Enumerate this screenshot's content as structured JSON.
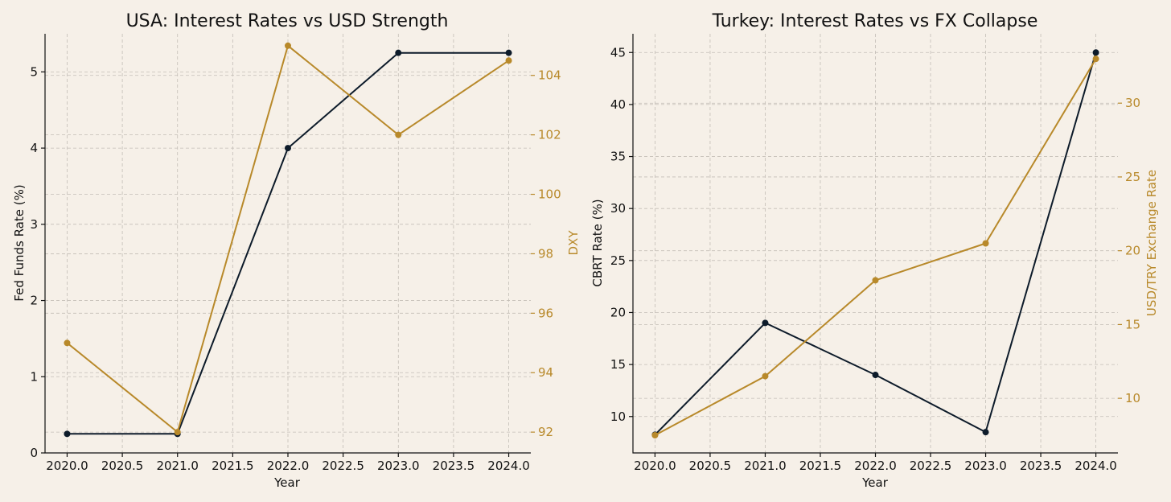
{
  "colors": {
    "background": "#f6f0e8",
    "primary_series": "#0d1b2a",
    "secondary_series": "#b8892a",
    "grid": "#c3bdb6",
    "axis": "#111111"
  },
  "chart_data": [
    {
      "type": "line",
      "title": "USA: Interest Rates vs USD Strength",
      "xlabel": "Year",
      "ylabel": "Fed Funds Rate (%)",
      "y2label": "DXY",
      "xlim": [
        2019.8,
        2024.2
      ],
      "ylim": [
        0,
        5.5
      ],
      "y2lim": [
        91.3,
        105.4
      ],
      "xticks": [
        "2020.0",
        "2020.5",
        "2021.0",
        "2021.5",
        "2022.0",
        "2022.5",
        "2023.0",
        "2023.5",
        "2024.0"
      ],
      "yticks": [
        "0",
        "1",
        "2",
        "3",
        "4",
        "5"
      ],
      "y2ticks": [
        "92",
        "94",
        "96",
        "98",
        "100",
        "102",
        "104"
      ],
      "grid": true,
      "series": [
        {
          "axis": "left",
          "color": "#0d1b2a",
          "x": [
            2020,
            2021,
            2022,
            2023,
            2024
          ],
          "values": [
            0.25,
            0.25,
            4.0,
            5.25,
            5.25
          ]
        },
        {
          "axis": "right",
          "color": "#b8892a",
          "x": [
            2020,
            2021,
            2022,
            2023,
            2024
          ],
          "values": [
            95.0,
            92.0,
            105.0,
            102.0,
            104.5
          ]
        }
      ]
    },
    {
      "type": "line",
      "title": "Turkey: Interest Rates vs FX Collapse",
      "xlabel": "Year",
      "ylabel": "CBRT Rate (%)",
      "y2label": "USD/TRY Exchange Rate",
      "xlim": [
        2019.8,
        2024.2
      ],
      "ylim": [
        6.5,
        46.8
      ],
      "y2lim": [
        6.3,
        34.7
      ],
      "xticks": [
        "2020.0",
        "2020.5",
        "2021.0",
        "2021.5",
        "2022.0",
        "2022.5",
        "2023.0",
        "2023.5",
        "2024.0"
      ],
      "yticks": [
        "10",
        "15",
        "20",
        "25",
        "30",
        "35",
        "40",
        "45"
      ],
      "y2ticks": [
        "10",
        "15",
        "20",
        "25",
        "30"
      ],
      "grid": true,
      "series": [
        {
          "axis": "left",
          "color": "#0d1b2a",
          "x": [
            2020,
            2021,
            2022,
            2023,
            2024
          ],
          "values": [
            8.25,
            19.0,
            14.0,
            8.5,
            45.0
          ]
        },
        {
          "axis": "right",
          "color": "#b8892a",
          "x": [
            2020,
            2021,
            2022,
            2023,
            2024
          ],
          "values": [
            7.5,
            11.5,
            18.0,
            20.5,
            33.0
          ]
        }
      ]
    }
  ]
}
